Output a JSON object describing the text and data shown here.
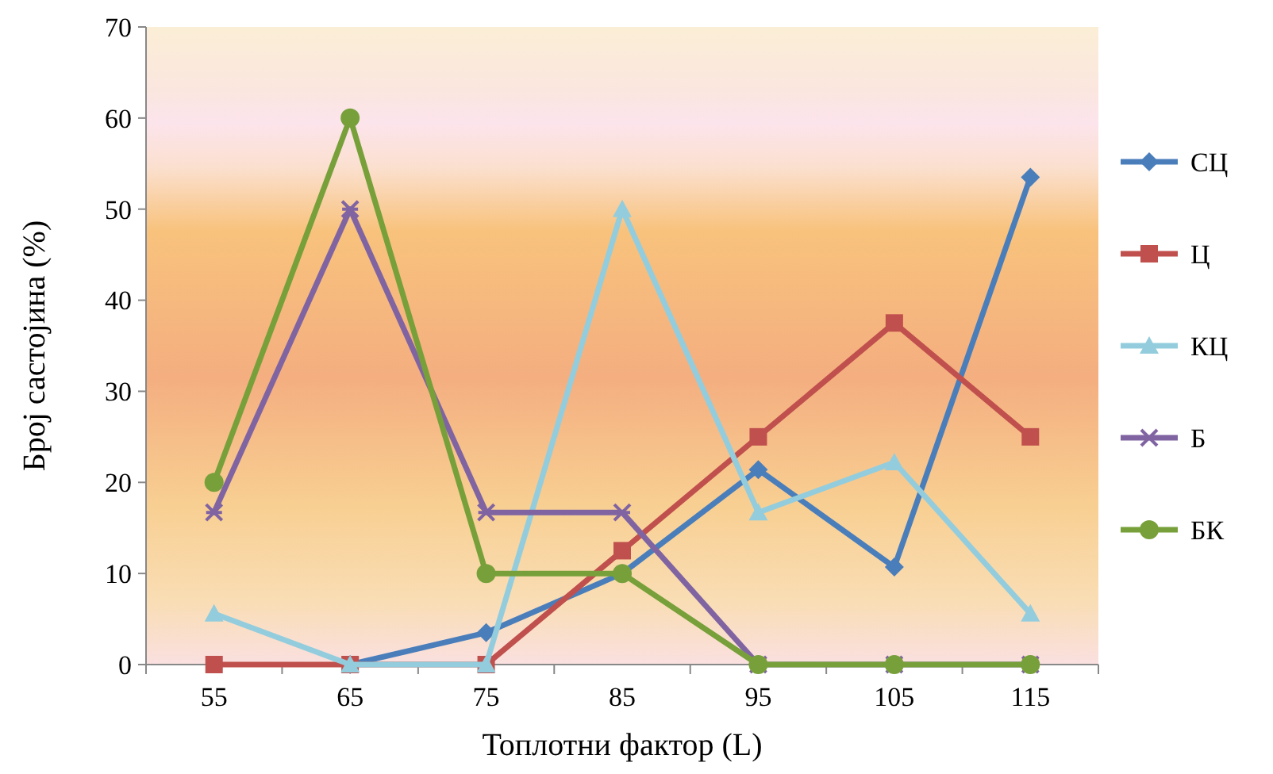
{
  "chart_data": {
    "type": "line",
    "xlabel": "Топлотни фактор (L)",
    "ylabel": "Број састојина (%)",
    "categories": [
      "55",
      "65",
      "75",
      "85",
      "95",
      "105",
      "115"
    ],
    "ylim": [
      0,
      70
    ],
    "yticks": [
      0,
      10,
      20,
      30,
      40,
      50,
      60,
      70
    ],
    "grid": false,
    "legend": "right",
    "series": [
      {
        "name": "СЦ",
        "color": "#4a7ebb",
        "marker": "diamond",
        "values": [
          null,
          0,
          3.5,
          10,
          21.4,
          10.7,
          53.5
        ]
      },
      {
        "name": "Ц",
        "color": "#c0504d",
        "marker": "square",
        "values": [
          0,
          0,
          0,
          12.5,
          25,
          37.5,
          25
        ]
      },
      {
        "name": "КЦ",
        "color": "#93cddd",
        "marker": "triangle",
        "values": [
          5.6,
          0,
          0,
          50,
          16.7,
          22.2,
          5.6
        ]
      },
      {
        "name": "Б",
        "color": "#8064a2",
        "marker": "cross",
        "values": [
          16.7,
          50,
          16.7,
          16.7,
          0,
          0,
          0
        ]
      },
      {
        "name": "БК",
        "color": "#77a03a",
        "marker": "circle",
        "values": [
          20,
          60,
          10,
          10,
          0,
          0,
          0
        ]
      }
    ]
  }
}
